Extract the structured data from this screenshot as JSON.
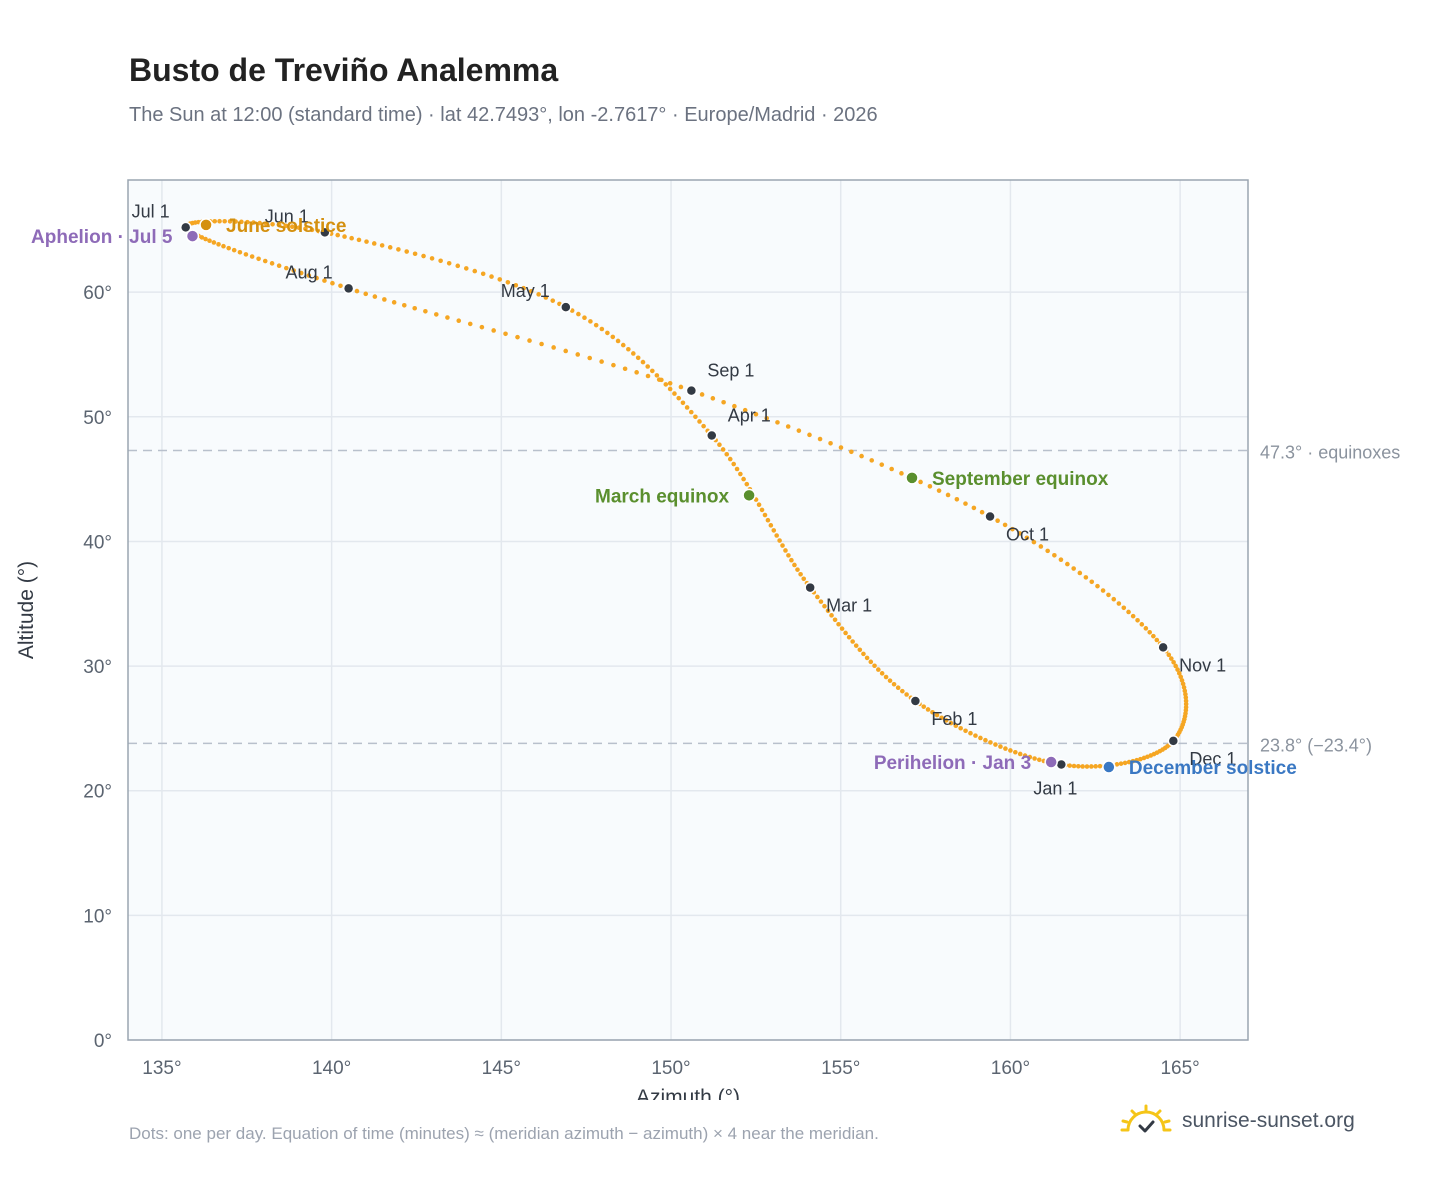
{
  "header": {
    "title": "Busto de Treviño Analemma",
    "subtitle": "The Sun at 12:00 (standard time) · lat 42.7493°, lon -2.7617° · Europe/Madrid · 2026"
  },
  "footer": {
    "note": "Dots: one per day. Equation of time (minutes) ≈ (meridian azimuth − azimuth) × 4 near the meridian.",
    "brand": "sunrise-sunset.org"
  },
  "colors": {
    "curve": "#f5a623",
    "month_marker": "#333a44",
    "june_solstice": "#d4900f",
    "december_solstice": "#3a78c3",
    "equinox": "#5a8f2e",
    "apsis": "#8e6bb8",
    "reference_line": "#b8c0cc",
    "plot_bg": "#f8fbfd"
  },
  "chart_data": {
    "type": "scatter",
    "xlabel": "Azimuth (°)",
    "ylabel": "Altitude (°)",
    "xlim": [
      134,
      167
    ],
    "ylim": [
      0,
      69
    ],
    "xticks": [
      135,
      140,
      145,
      150,
      155,
      160,
      165
    ],
    "yticks": [
      0,
      10,
      20,
      30,
      40,
      50,
      60
    ],
    "tick_suffix": "°",
    "grid": true,
    "path_points": [
      {
        "date": "Jan 1",
        "az": 161.5,
        "alt": 22.1
      },
      {
        "date": "Feb 1",
        "az": 157.2,
        "alt": 27.2
      },
      {
        "date": "Mar 1",
        "az": 154.1,
        "alt": 36.3
      },
      {
        "date": "Apr 1",
        "az": 151.2,
        "alt": 48.5
      },
      {
        "date": "May 1",
        "az": 146.9,
        "alt": 58.8
      },
      {
        "date": "Jun 1",
        "az": 139.8,
        "alt": 64.8
      },
      {
        "date": "Jul 1",
        "az": 135.7,
        "alt": 65.2
      },
      {
        "date": "Aug 1",
        "az": 140.5,
        "alt": 60.3
      },
      {
        "date": "Sep 1",
        "az": 150.6,
        "alt": 52.1
      },
      {
        "date": "Oct 1",
        "az": 159.4,
        "alt": 42.0
      },
      {
        "date": "Nov 1",
        "az": 164.5,
        "alt": 31.5
      },
      {
        "date": "Dec 1",
        "az": 164.8,
        "alt": 24.0
      },
      {
        "date": "Jan 1",
        "az": 161.5,
        "alt": 22.1
      }
    ],
    "month_markers": [
      {
        "label": "Jan 1",
        "az": 161.5,
        "alt": 22.1,
        "anchor": "below"
      },
      {
        "label": "Feb 1",
        "az": 157.2,
        "alt": 27.2,
        "anchor": "below-right"
      },
      {
        "label": "Mar 1",
        "az": 154.1,
        "alt": 36.3,
        "anchor": "below-right"
      },
      {
        "label": "Apr 1",
        "az": 151.2,
        "alt": 48.5,
        "anchor": "above-right"
      },
      {
        "label": "May 1",
        "az": 146.9,
        "alt": 58.8,
        "anchor": "above-left"
      },
      {
        "label": "Jun 1",
        "az": 139.8,
        "alt": 64.8,
        "anchor": "above-left"
      },
      {
        "label": "Jul 1",
        "az": 135.7,
        "alt": 65.2,
        "anchor": "above-left"
      },
      {
        "label": "Aug 1",
        "az": 140.5,
        "alt": 60.3,
        "anchor": "above-left"
      },
      {
        "label": "Sep 1",
        "az": 150.6,
        "alt": 52.1,
        "anchor": "above-right"
      },
      {
        "label": "Oct 1",
        "az": 159.4,
        "alt": 42.0,
        "anchor": "below-right"
      },
      {
        "label": "Nov 1",
        "az": 164.5,
        "alt": 31.5,
        "anchor": "below-right"
      },
      {
        "label": "Dec 1",
        "az": 164.8,
        "alt": 24.0,
        "anchor": "below-right"
      }
    ],
    "events": [
      {
        "label": "June solstice",
        "az": 136.3,
        "alt": 65.4,
        "color_key": "june_solstice",
        "side": "right"
      },
      {
        "label": "Aphelion · Jul 5",
        "az": 135.9,
        "alt": 64.5,
        "color_key": "apsis",
        "side": "left"
      },
      {
        "label": "March equinox",
        "az": 152.3,
        "alt": 43.7,
        "color_key": "equinox",
        "side": "left"
      },
      {
        "label": "September equinox",
        "az": 157.1,
        "alt": 45.1,
        "color_key": "equinox",
        "side": "right"
      },
      {
        "label": "Perihelion · Jan 3",
        "az": 161.2,
        "alt": 22.3,
        "color_key": "apsis",
        "side": "left"
      },
      {
        "label": "December solstice",
        "az": 162.9,
        "alt": 21.9,
        "color_key": "december_solstice",
        "side": "right"
      }
    ],
    "reference_lines": [
      {
        "alt": 47.3,
        "label": "47.3° · equinoxes"
      },
      {
        "alt": 23.8,
        "label": "23.8° (−23.4°)"
      }
    ]
  }
}
